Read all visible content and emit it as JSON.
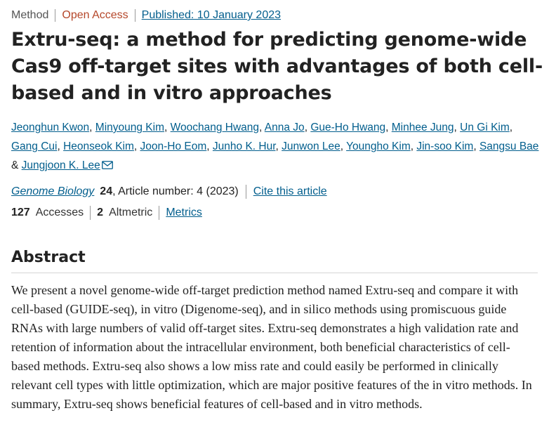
{
  "article_meta": {
    "type": "Method",
    "access": "Open Access",
    "published": "Published: 10 January 2023"
  },
  "title": "Extru-seq: a method for predicting genome-wide Cas9 off-target sites with advantages of both cell-based and in vitro approaches",
  "authors": [
    "Jeonghun Kwon",
    "Minyoung Kim",
    "Woochang Hwang",
    "Anna Jo",
    "Gue-Ho Hwang",
    "Minhee Jung",
    "Un Gi Kim",
    "Gang Cui",
    "Heonseok Kim",
    "Joon-Ho Eom",
    "Junho K. Hur",
    "Junwon Lee",
    "Youngho Kim",
    "Jin-soo Kim",
    "Sangsu Bae",
    "Jungjoon K. Lee"
  ],
  "author_separators": {
    "comma": ", ",
    "ampersand": "& "
  },
  "icons": {
    "corresponding_author": "mail-icon"
  },
  "citation": {
    "journal": "Genome Biology",
    "volume": "24",
    "article_info": ", Article number: 4 (2023)",
    "cite_link": "Cite this article"
  },
  "metrics": {
    "accesses_count": "127",
    "accesses_label": "Accesses",
    "altmetric_count": "2",
    "altmetric_label": "Altmetric",
    "metrics_link": "Metrics"
  },
  "abstract": {
    "heading": "Abstract",
    "text": "We present a novel genome-wide off-target prediction method named Extru-seq and compare it with cell-based (GUIDE-seq), in vitro (Digenome-seq), and in silico methods using promiscuous guide RNAs with large numbers of valid off-target sites. Extru-seq demonstrates a high validation rate and retention of information about the intracellular environment, both beneficial characteristics of cell-based methods. Extru-seq also shows a low miss rate and could easily be performed in clinically relevant cell types with little optimization, which are major positive features of the in vitro methods. In summary, Extru-seq shows beneficial features of cell-based and in vitro methods."
  },
  "colors": {
    "link": "#025e8d",
    "open_access": "#b5472a",
    "text": "#222222"
  }
}
